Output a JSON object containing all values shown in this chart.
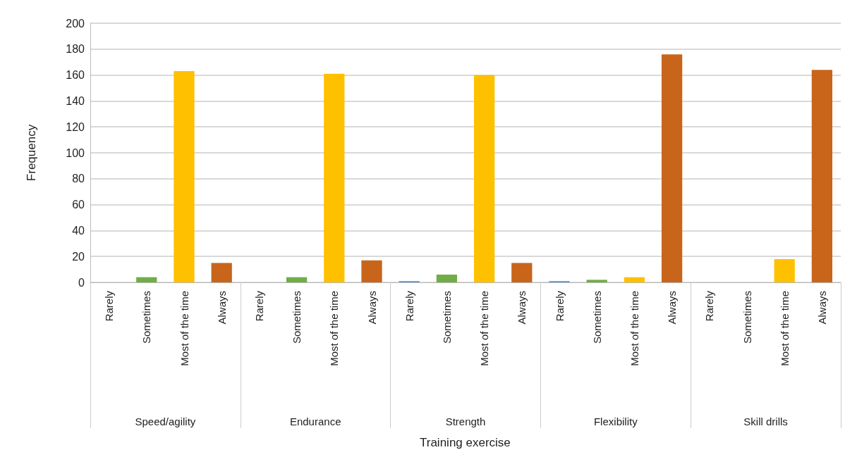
{
  "chart_data": {
    "type": "bar",
    "ylabel": "Frequency",
    "categories": [
      "Rarely",
      "Sometimes",
      "Most of the time",
      "Always",
      "Rarely",
      "Sometimes",
      "Most of the time",
      "Always",
      "Rarely",
      "Sometimes",
      "Most of the time",
      "Always",
      "Rarely",
      "Sometimes",
      "Most of the time",
      "Always",
      "Rarely",
      "Sometimes",
      "Most of the time",
      "Always"
    ],
    "values": [
      0,
      4,
      163,
      15,
      0,
      4,
      161,
      17,
      1,
      6,
      160,
      15,
      1,
      2,
      4,
      176,
      0,
      0,
      18,
      164
    ],
    "colors": [
      "#5b9bd5",
      "#70ad47",
      "#ffc000",
      "#c8651b",
      "#5b9bd5",
      "#70ad47",
      "#ffc000",
      "#c8651b",
      "#5b9bd5",
      "#70ad47",
      "#ffc000",
      "#c8651b",
      "#5b9bd5",
      "#70ad47",
      "#ffc000",
      "#c8651b",
      "#5b9bd5",
      "#70ad47",
      "#ffc000",
      "#c8651b"
    ],
    "annotations": [
      "Speed/agility",
      "Endurance",
      "Strength",
      "Flexibility",
      "Skill drills",
      "Training exercise"
    ],
    "ylim": [
      0,
      200
    ],
    "yticks": [
      0,
      20,
      40,
      60,
      80,
      100,
      120,
      140,
      160,
      180,
      200
    ],
    "grid": "y"
  }
}
